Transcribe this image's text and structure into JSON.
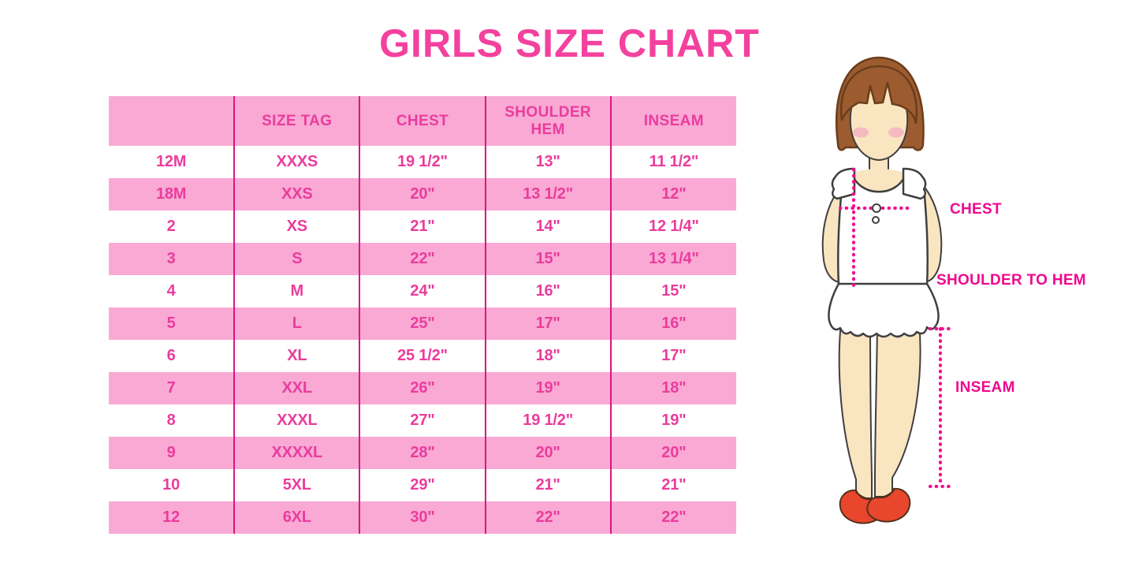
{
  "title": "GIRLS SIZE CHART",
  "colors": {
    "background": "#FFFFFF",
    "title_pink": "#F4419E",
    "table_text": "#EA3C9D",
    "row_pink": "#F9A9D4",
    "divider_pink": "#DB1680",
    "label_magenta": "#F0078E",
    "dot_magenta": "#F01090",
    "hair_brown": "#9C5C30",
    "hair_outline": "#6B3D1B",
    "skin": "#FAE5C1",
    "outline_dark": "#3F3F3F",
    "blush_pink": "#F5B1C2",
    "shoe_red": "#E8472E",
    "shoe_outline": "#55301A"
  },
  "table": {
    "columns": [
      "",
      "SIZE TAG",
      "CHEST",
      "SHOULDER HEM",
      "INSEAM"
    ],
    "rows": [
      [
        "12M",
        "XXXS",
        "19 1/2\"",
        "13\"",
        "11 1/2\""
      ],
      [
        "18M",
        "XXS",
        "20\"",
        "13 1/2\"",
        "12\""
      ],
      [
        "2",
        "XS",
        "21\"",
        "14\"",
        "12 1/4\""
      ],
      [
        "3",
        "S",
        "22\"",
        "15\"",
        "13 1/4\""
      ],
      [
        "4",
        "M",
        "24\"",
        "16\"",
        "15\""
      ],
      [
        "5",
        "L",
        "25\"",
        "17\"",
        "16\""
      ],
      [
        "6",
        "XL",
        "25 1/2\"",
        "18\"",
        "17\""
      ],
      [
        "7",
        "XXL",
        "26\"",
        "19\"",
        "18\""
      ],
      [
        "8",
        "XXXL",
        "27\"",
        "19 1/2\"",
        "19\""
      ],
      [
        "9",
        "XXXXL",
        "28\"",
        "20\"",
        "20\""
      ],
      [
        "10",
        "5XL",
        "29\"",
        "21\"",
        "21\""
      ],
      [
        "12",
        "6XL",
        "30\"",
        "22\"",
        "22\""
      ]
    ]
  },
  "figure": {
    "labels": {
      "chest": "CHEST",
      "shoulder_to_hem": "SHOULDER TO HEM",
      "inseam": "INSEAM"
    }
  },
  "chart_data": {
    "type": "table",
    "title": "GIRLS SIZE CHART",
    "columns": [
      "",
      "SIZE TAG",
      "CHEST",
      "SHOULDER HEM",
      "INSEAM"
    ],
    "rows": [
      [
        "12M",
        "XXXS",
        "19 1/2\"",
        "13\"",
        "11 1/2\""
      ],
      [
        "18M",
        "XXS",
        "20\"",
        "13 1/2\"",
        "12\""
      ],
      [
        "2",
        "XS",
        "21\"",
        "14\"",
        "12 1/4\""
      ],
      [
        "3",
        "S",
        "22\"",
        "15\"",
        "13 1/4\""
      ],
      [
        "4",
        "M",
        "24\"",
        "16\"",
        "15\""
      ],
      [
        "5",
        "L",
        "25\"",
        "17\"",
        "16\""
      ],
      [
        "6",
        "XL",
        "25 1/2\"",
        "18\"",
        "17\""
      ],
      [
        "7",
        "XXL",
        "26\"",
        "19\"",
        "18\""
      ],
      [
        "8",
        "XXXL",
        "27\"",
        "19 1/2\"",
        "19\""
      ],
      [
        "9",
        "XXXXL",
        "28\"",
        "20\"",
        "20\""
      ],
      [
        "10",
        "5XL",
        "29\"",
        "21\"",
        "21\""
      ],
      [
        "12",
        "6XL",
        "30\"",
        "22\"",
        "22\""
      ]
    ],
    "notes": "Measurement diagram labels: CHEST, SHOULDER TO HEM, INSEAM; alternating pink/white rows; legend-free infographic"
  }
}
